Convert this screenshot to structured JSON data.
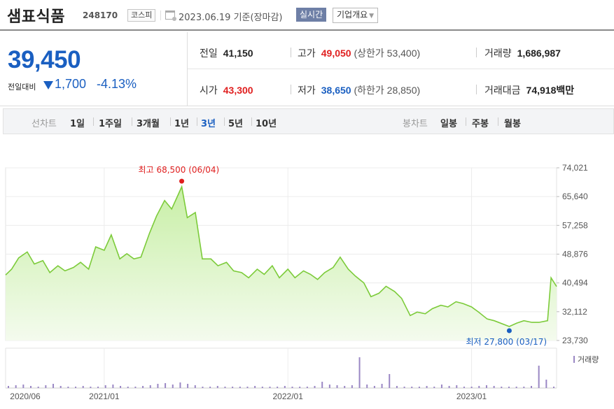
{
  "header": {
    "stock_name": "샘표식품",
    "stock_code": "248170",
    "market_badge": "코스피",
    "date_label": "2023.06.19 기준(장마감)",
    "realtime_button": "실시간",
    "overview_button": "기업개요",
    "calendar_icon": "calendar-icon",
    "chevron_icon": "chevron-down-icon"
  },
  "summary": {
    "price": "39,450",
    "change_label": "전일대비",
    "change_value": "1,700",
    "change_pct": "-4.13%",
    "prev_close_label": "전일",
    "prev_close": "41,150",
    "high_label": "고가",
    "high": "49,050",
    "upper_limit": "(상한가 53,400)",
    "volume_label": "거래량",
    "volume": "1,686,987",
    "open_label": "시가",
    "open": "43,300",
    "low_label": "저가",
    "low": "38,650",
    "lower_limit": "(하한가 28,850)",
    "amount_label": "거래대금",
    "amount": "74,918",
    "amount_unit": "백만"
  },
  "period_bar": {
    "line_label": "선차트",
    "line_periods": [
      "1일",
      "1주일",
      "3개월",
      "1년",
      "3년",
      "5년",
      "10년"
    ],
    "selected": "3년",
    "candle_label": "봉차트",
    "candle_periods": [
      "일봉",
      "주봉",
      "월봉"
    ]
  },
  "chart_data": {
    "type": "area",
    "y_ticks": [
      "74,021",
      "65,640",
      "57,258",
      "48,876",
      "40,494",
      "32,112",
      "23,730"
    ],
    "ylim": [
      23730,
      74021
    ],
    "x_ticks": [
      "2020/06",
      "2021/01",
      "2022/01",
      "2023/01"
    ],
    "high_annotation": "최고 68,500 (06/04)",
    "low_annotation": "최저 27,800 (03/17)",
    "volume_legend": "거래량",
    "line_color": "#7ccb3a",
    "fill_color": "#e6f6d8",
    "high_color": "#e01f1f",
    "low_color": "#1a5fc1",
    "volume_color": "#9a87c4",
    "series_x_dates": [
      "2020-06-19",
      "2020-07-01",
      "2020-07-15",
      "2020-08-01",
      "2020-08-15",
      "2020-09-01",
      "2020-09-15",
      "2020-10-01",
      "2020-10-15",
      "2020-11-01",
      "2020-11-15",
      "2020-12-01",
      "2020-12-15",
      "2021-01-01",
      "2021-01-15",
      "2021-02-01",
      "2021-02-15",
      "2021-03-01",
      "2021-03-15",
      "2021-04-01",
      "2021-04-15",
      "2021-05-01",
      "2021-05-15",
      "2021-06-04",
      "2021-06-15",
      "2021-07-01",
      "2021-07-15",
      "2021-08-01",
      "2021-08-15",
      "2021-09-01",
      "2021-09-15",
      "2021-10-01",
      "2021-10-15",
      "2021-11-01",
      "2021-11-15",
      "2021-12-01",
      "2021-12-15",
      "2022-01-01",
      "2022-01-15",
      "2022-02-01",
      "2022-02-15",
      "2022-03-01",
      "2022-03-15",
      "2022-04-01",
      "2022-04-15",
      "2022-05-01",
      "2022-05-15",
      "2022-06-01",
      "2022-06-15",
      "2022-07-01",
      "2022-07-15",
      "2022-08-01",
      "2022-08-15",
      "2022-09-01",
      "2022-09-15",
      "2022-10-01",
      "2022-10-15",
      "2022-11-01",
      "2022-11-15",
      "2022-12-01",
      "2022-12-15",
      "2023-01-01",
      "2023-01-15",
      "2023-02-01",
      "2023-02-15",
      "2023-03-17",
      "2023-04-01",
      "2023-04-15",
      "2023-05-01",
      "2023-05-15",
      "2023-06-01",
      "2023-06-08",
      "2023-06-19"
    ],
    "series_y": [
      42800,
      44500,
      47800,
      49500,
      46000,
      47000,
      43500,
      45500,
      44000,
      45000,
      46500,
      44500,
      51000,
      50000,
      54500,
      47500,
      49000,
      47500,
      48000,
      55000,
      60000,
      64500,
      62000,
      68500,
      59500,
      61000,
      47500,
      47500,
      45500,
      46500,
      44000,
      43500,
      42000,
      44500,
      43000,
      45500,
      42000,
      44500,
      42000,
      44000,
      43000,
      41500,
      43500,
      45000,
      48000,
      44500,
      42500,
      40500,
      36500,
      37500,
      39500,
      38000,
      36000,
      31000,
      32000,
      31500,
      33000,
      34000,
      33500,
      35000,
      34500,
      33500,
      32000,
      30000,
      29500,
      27800,
      28800,
      29500,
      29000,
      29000,
      29500,
      42000,
      39450
    ],
    "volume_spikes": [
      {
        "date": "2022-01",
        "value": "medium"
      },
      {
        "date": "2022-04",
        "value": "high"
      },
      {
        "date": "2022-07",
        "value": "low"
      },
      {
        "date": "2023-06-08",
        "value": "high"
      }
    ]
  }
}
